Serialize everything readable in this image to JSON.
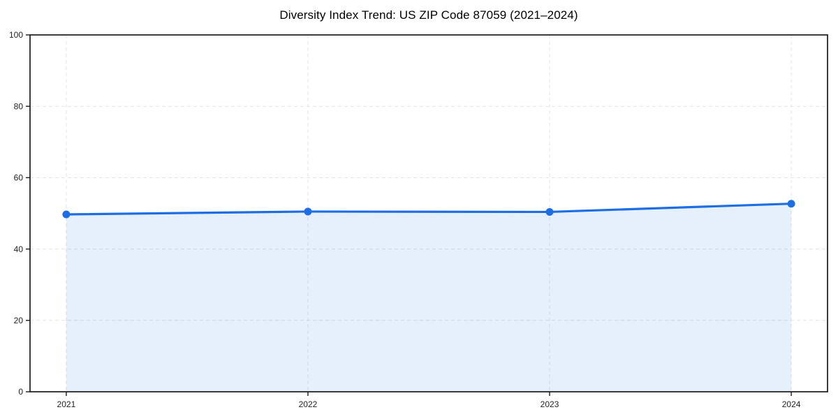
{
  "title": "Diversity Index Trend: US ZIP Code 87059 (2021–2024)",
  "chart_data": {
    "type": "area",
    "title": "Diversity Index Trend: US ZIP Code 87059 (2021–2024)",
    "x": [
      2021,
      2022,
      2023,
      2024
    ],
    "x_tick_labels": [
      "2021",
      "2022",
      "2023",
      "2024"
    ],
    "series": [
      {
        "name": "Diversity Index",
        "values": [
          49.7,
          50.5,
          50.4,
          52.7
        ]
      }
    ],
    "xlabel": "",
    "ylabel": "",
    "ylim": [
      0,
      100
    ],
    "yticks": [
      0,
      20,
      40,
      60,
      80,
      100
    ],
    "grid": true,
    "grid_style": "dashed",
    "legend": "none",
    "colors": {
      "line": "#1c6ee2",
      "marker": "#1c6ee2",
      "area_fill": "#1c6ee2",
      "area_fill_opacity": 0.11,
      "grid": "#e3e3e3",
      "spine": "#1a1a1a",
      "tick_label": "#222222",
      "background": "#ffffff"
    }
  }
}
